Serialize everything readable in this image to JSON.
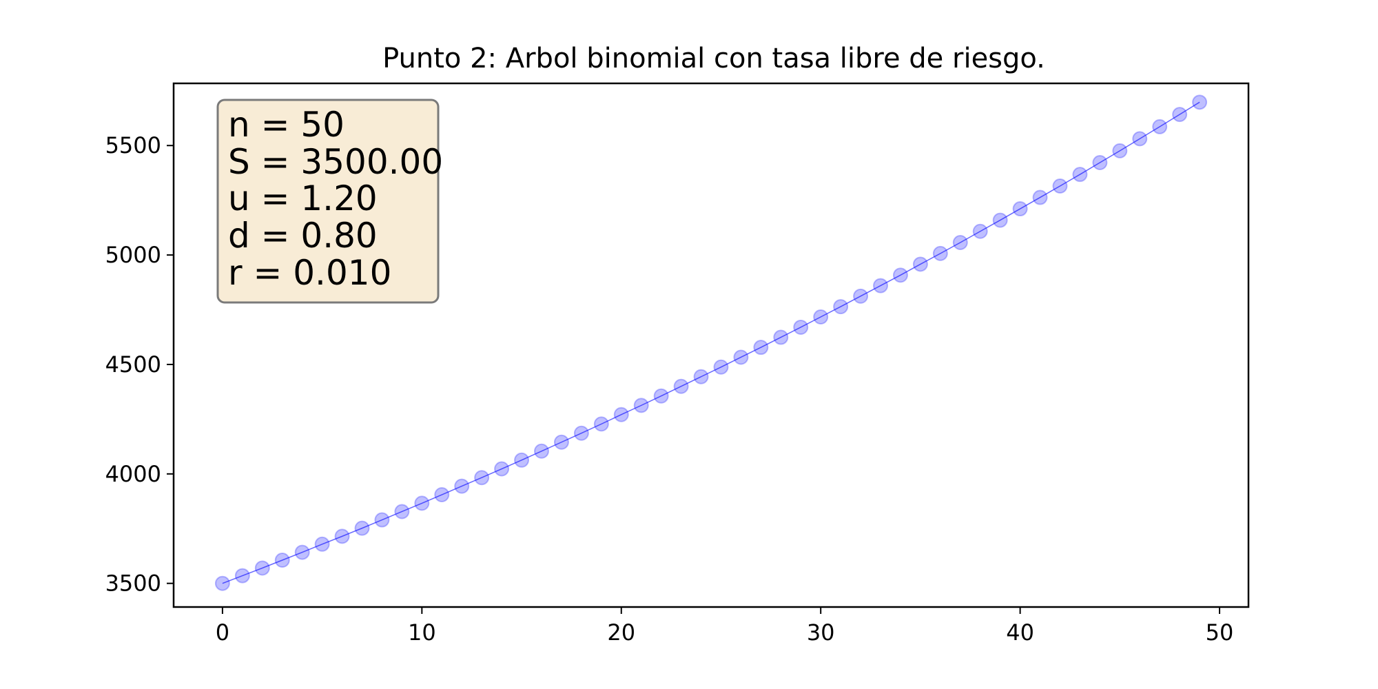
{
  "chart_data": {
    "type": "line",
    "title": "Punto 2: Arbol binomial con tasa libre de riesgo.",
    "xlabel": "",
    "ylabel": "",
    "xlim": [
      -2.45,
      51.45
    ],
    "ylim": [
      3392,
      5784
    ],
    "x_ticks": [
      0,
      10,
      20,
      30,
      40,
      50
    ],
    "y_ticks": [
      3500,
      4000,
      4500,
      5000,
      5500
    ],
    "grid": false,
    "legend": "none",
    "marker": "circle",
    "series": [
      {
        "color": "#0000ff",
        "x": [
          0,
          1,
          2,
          3,
          4,
          5,
          6,
          7,
          8,
          9,
          10,
          11,
          12,
          13,
          14,
          15,
          16,
          17,
          18,
          19,
          20,
          21,
          22,
          23,
          24,
          25,
          26,
          27,
          28,
          29,
          30,
          31,
          32,
          33,
          34,
          35,
          36,
          37,
          38,
          39,
          40,
          41,
          42,
          43,
          44,
          45,
          46,
          47,
          48,
          49
        ],
        "values": [
          3500,
          3535,
          3570,
          3606,
          3642,
          3679,
          3715,
          3752,
          3790,
          3828,
          3866,
          3905,
          3944,
          3983,
          4023,
          4063,
          4104,
          4145,
          4186,
          4228,
          4271,
          4313,
          4356,
          4400,
          4444,
          4488,
          4533,
          4578,
          4624,
          4670,
          4717,
          4764,
          4812,
          4860,
          4908,
          4958,
          5007,
          5057,
          5108,
          5159,
          5211,
          5263,
          5315,
          5368,
          5422,
          5476,
          5531,
          5586,
          5642,
          5698
        ]
      }
    ],
    "info_box": {
      "lines": [
        "n = 50",
        "S = 3500.00",
        "u = 1.20",
        "d = 0.80",
        "r = 0.010"
      ],
      "background": "#f8ecd6",
      "border": "#7a7a7a"
    }
  }
}
